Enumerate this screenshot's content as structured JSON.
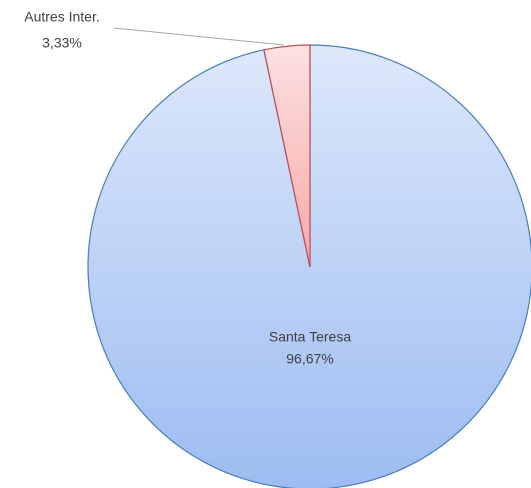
{
  "chart_data": {
    "type": "pie",
    "categories": [
      "Santa Teresa",
      "Autres Inter."
    ],
    "values": [
      96.67,
      3.33
    ],
    "value_labels": [
      "96,67%",
      "3,33%"
    ],
    "colors": [
      "#9dbcf2",
      "#f7a8a8"
    ],
    "edge_colors": [
      "#4a7ebb",
      "#c0504d"
    ]
  }
}
